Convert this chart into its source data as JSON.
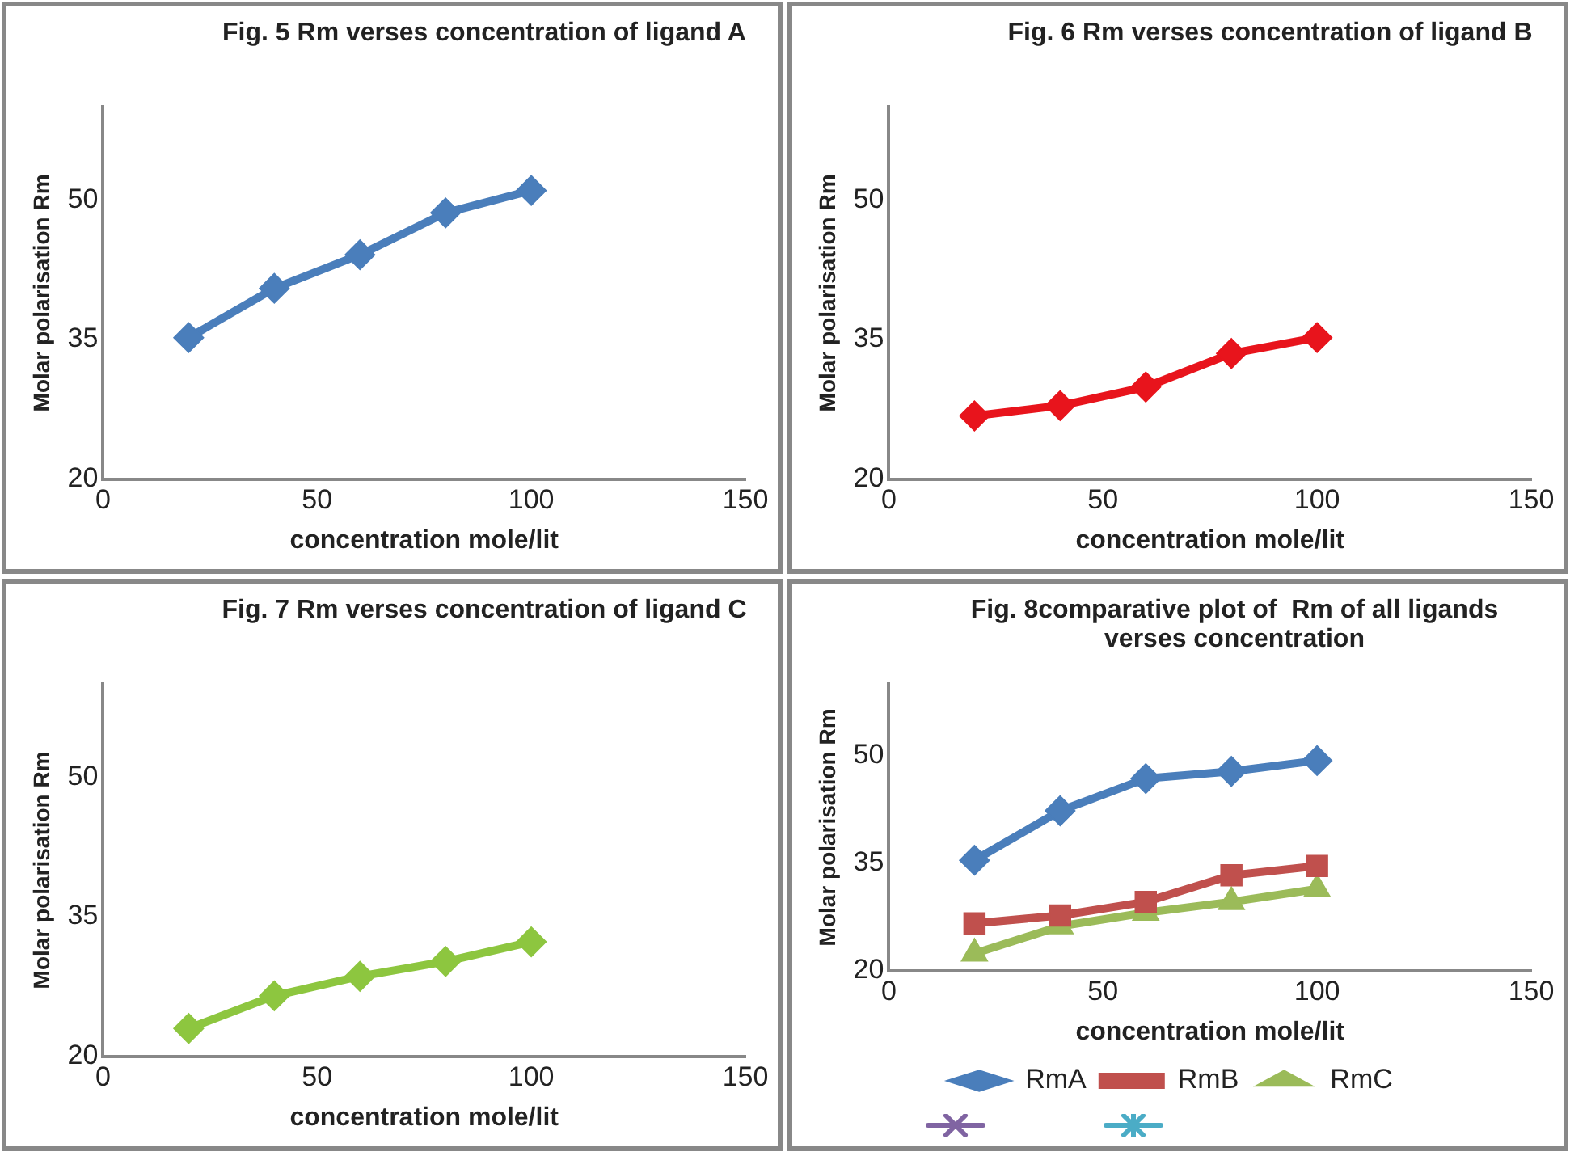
{
  "chart_data": [
    {
      "type": "line",
      "title": "Fig. 5 Rm verses concentration of ligand A",
      "xlabel": "concentration mole/lit",
      "ylabel": "Molar polarisation Rm",
      "x": [
        20,
        40,
        60,
        80,
        100
      ],
      "series": [
        {
          "color": "#4a7ebb",
          "values": [
            35.2,
            40.5,
            44.1,
            48.6,
            51.0
          ]
        }
      ],
      "xlim": [
        0,
        150
      ],
      "xticks": [
        0,
        50,
        100,
        150
      ],
      "ylim": [
        20,
        60
      ],
      "yticks": [
        20,
        35,
        50
      ],
      "grid": false,
      "legend": false,
      "marker": "diamond"
    },
    {
      "type": "line",
      "title": "Fig. 6 Rm verses concentration of ligand B",
      "xlabel": "concentration mole/lit",
      "ylabel": "Molar polarisation Rm",
      "x": [
        20,
        40,
        60,
        80,
        100
      ],
      "series": [
        {
          "color": "#e8141c",
          "values": [
            26.8,
            27.9,
            29.9,
            33.5,
            35.2
          ]
        }
      ],
      "xlim": [
        0,
        150
      ],
      "xticks": [
        0,
        50,
        100,
        150
      ],
      "ylim": [
        20,
        60
      ],
      "yticks": [
        20,
        35,
        50
      ],
      "grid": false,
      "legend": false,
      "marker": "diamond"
    },
    {
      "type": "line",
      "title": "Fig. 7 Rm verses concentration of ligand C",
      "xlabel": "concentration mole/lit",
      "ylabel": "Molar polarisation Rm",
      "x": [
        20,
        40,
        60,
        80,
        100
      ],
      "series": [
        {
          "color": "#8dc63f",
          "values": [
            23.0,
            26.5,
            28.6,
            30.2,
            32.3
          ]
        }
      ],
      "xlim": [
        0,
        150
      ],
      "xticks": [
        0,
        50,
        100,
        150
      ],
      "ylim": [
        20,
        60
      ],
      "yticks": [
        20,
        35,
        50
      ],
      "grid": false,
      "legend": false,
      "marker": "diamond"
    },
    {
      "type": "line",
      "title": "Fig. 8comparative plot of  Rm of all ligands verses concentration",
      "xlabel": "concentration mole/lit",
      "ylabel": "Molar polarisation Rm",
      "x": [
        20,
        40,
        60,
        80,
        100
      ],
      "series": [
        {
          "name": "RmA",
          "color": "#4a7ebb",
          "marker": "diamond",
          "values": [
            35.4,
            42.3,
            46.8,
            47.8,
            49.3
          ]
        },
        {
          "name": "RmB",
          "color": "#c0504d",
          "marker": "square",
          "values": [
            26.6,
            27.7,
            29.6,
            33.3,
            34.6
          ]
        },
        {
          "name": "RmC",
          "color": "#9bbb59",
          "marker": "triangle",
          "values": [
            22.4,
            26.2,
            28.1,
            29.6,
            31.4
          ]
        }
      ],
      "xlim": [
        0,
        150
      ],
      "xticks": [
        0,
        50,
        100,
        150
      ],
      "ylim": [
        20,
        60
      ],
      "yticks": [
        20,
        35,
        50
      ],
      "grid": false,
      "legend": "bottom"
    }
  ]
}
